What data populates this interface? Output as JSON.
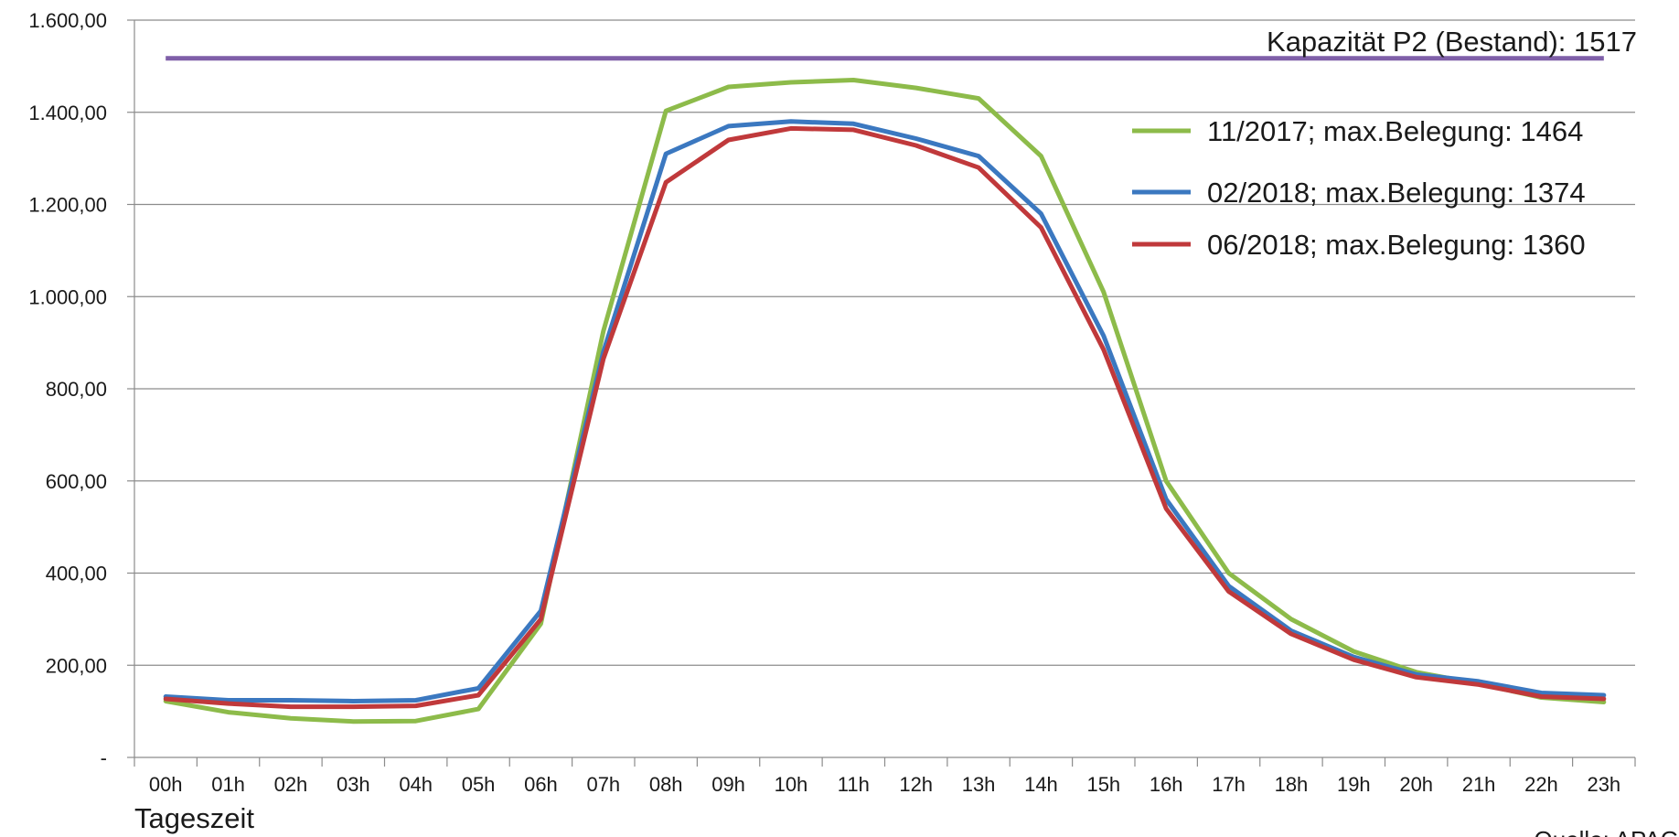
{
  "chart_data": {
    "type": "line",
    "title": "",
    "xlabel": "Tageszeit",
    "ylabel": "",
    "ylim": [
      0,
      1600
    ],
    "yticks": [
      {
        "value": 0,
        "label": "-"
      },
      {
        "value": 200,
        "label": "200,00"
      },
      {
        "value": 400,
        "label": "400,00"
      },
      {
        "value": 600,
        "label": "600,00"
      },
      {
        "value": 800,
        "label": "800,00"
      },
      {
        "value": 1000,
        "label": "1.000,00"
      },
      {
        "value": 1200,
        "label": "1.200,00"
      },
      {
        "value": 1400,
        "label": "1.400,00"
      },
      {
        "value": 1600,
        "label": "1.600,00"
      }
    ],
    "categories": [
      "00h",
      "01h",
      "02h",
      "03h",
      "04h",
      "05h",
      "06h",
      "07h",
      "08h",
      "09h",
      "10h",
      "11h",
      "12h",
      "13h",
      "14h",
      "15h",
      "16h",
      "17h",
      "18h",
      "19h",
      "20h",
      "21h",
      "22h",
      "23h"
    ],
    "grid": true,
    "legend_position": "top-right",
    "capacity_line": {
      "name": "Kapazität P2 (Bestand): 1517",
      "value": 1517,
      "color": "#7f5fa8"
    },
    "series": [
      {
        "name": "11/2017; max.Belegung: 1464",
        "color": "#8dbb4a",
        "values": [
          122,
          98,
          85,
          78,
          79,
          105,
          290,
          925,
          1403,
          1455,
          1465,
          1470,
          1453,
          1430,
          1305,
          1010,
          600,
          400,
          300,
          230,
          185,
          160,
          130,
          120
        ]
      },
      {
        "name": "02/2018; max.Belegung: 1374",
        "color": "#3b78c0",
        "values": [
          132,
          124,
          124,
          122,
          124,
          150,
          318,
          880,
          1310,
          1370,
          1380,
          1375,
          1343,
          1305,
          1180,
          915,
          560,
          372,
          275,
          218,
          180,
          165,
          140,
          135
        ]
      },
      {
        "name": "06/2018; max.Belegung: 1360",
        "color": "#c0393b",
        "values": [
          127,
          117,
          110,
          110,
          112,
          135,
          300,
          865,
          1248,
          1340,
          1365,
          1362,
          1328,
          1280,
          1150,
          885,
          540,
          360,
          268,
          212,
          174,
          158,
          132,
          127
        ]
      }
    ],
    "source_note": "Quelle: APAG"
  }
}
